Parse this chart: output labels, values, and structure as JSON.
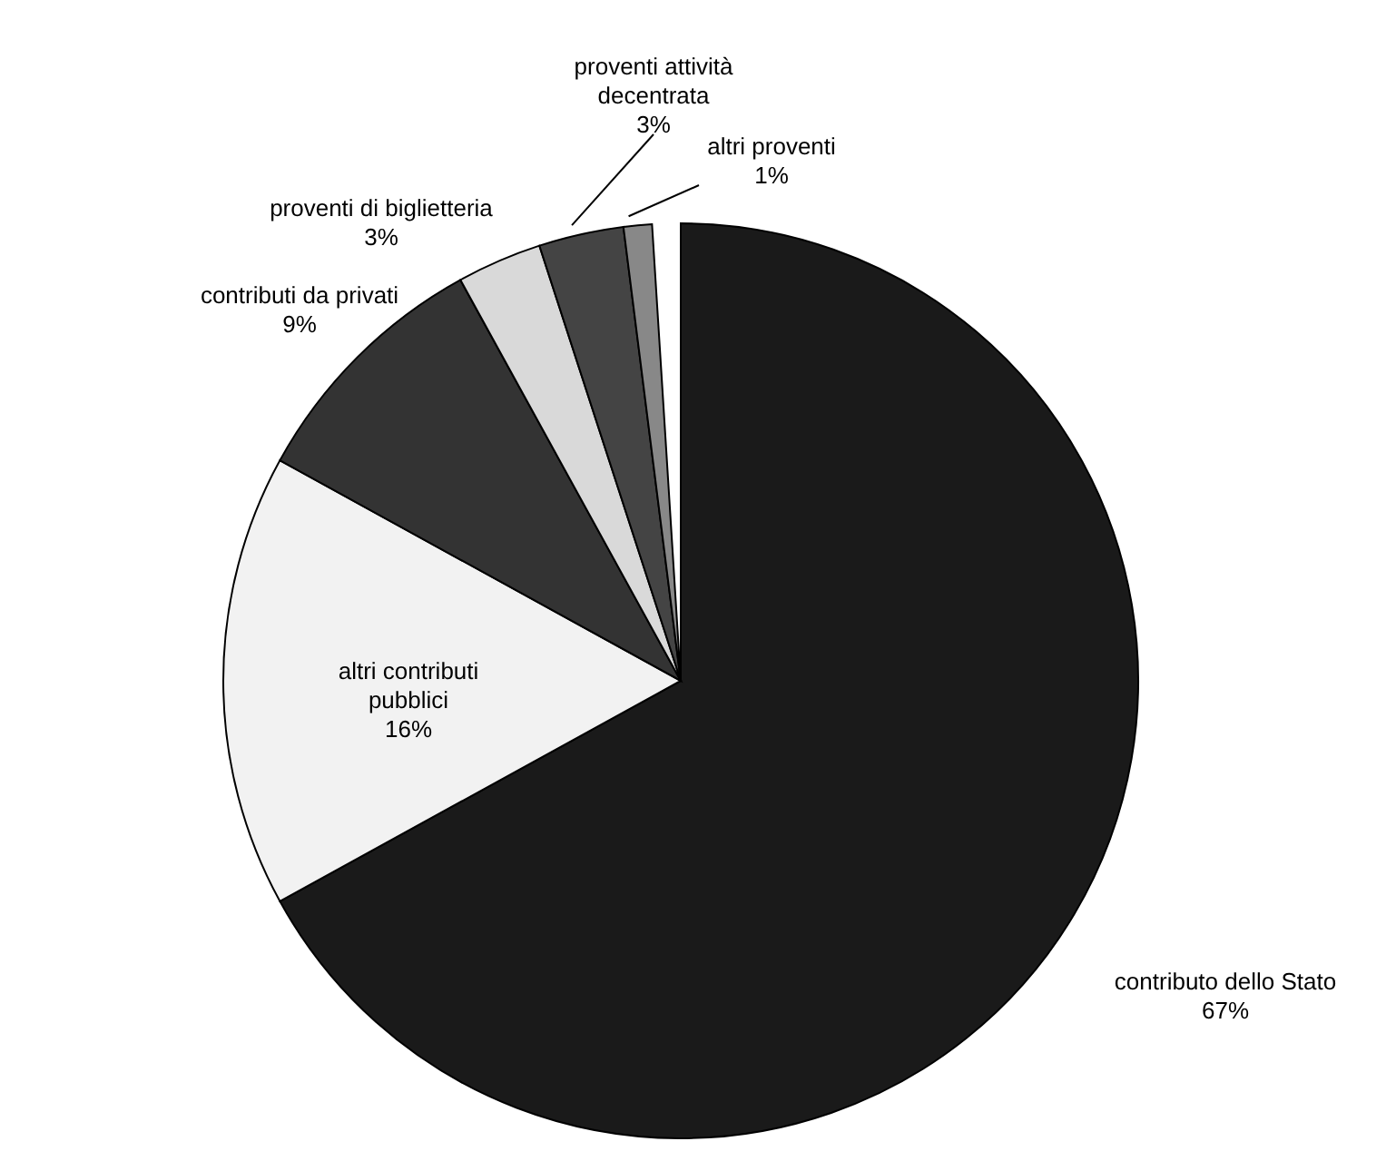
{
  "chart_data": {
    "type": "pie",
    "categories": [
      "contributo dello Stato",
      "altri contributi pubblici",
      "contributi da privati",
      "proventi di biglietteria",
      "proventi attività decentrata",
      "altri proventi"
    ],
    "values": [
      67,
      16,
      9,
      3,
      3,
      1
    ],
    "value_labels": [
      "67%",
      "16%",
      "9%",
      "3%",
      "3%",
      "1%"
    ],
    "colors": [
      "#1a1a1a",
      "#f2f2f2",
      "#333333",
      "#d9d9d9",
      "#444444",
      "#888888"
    ]
  }
}
